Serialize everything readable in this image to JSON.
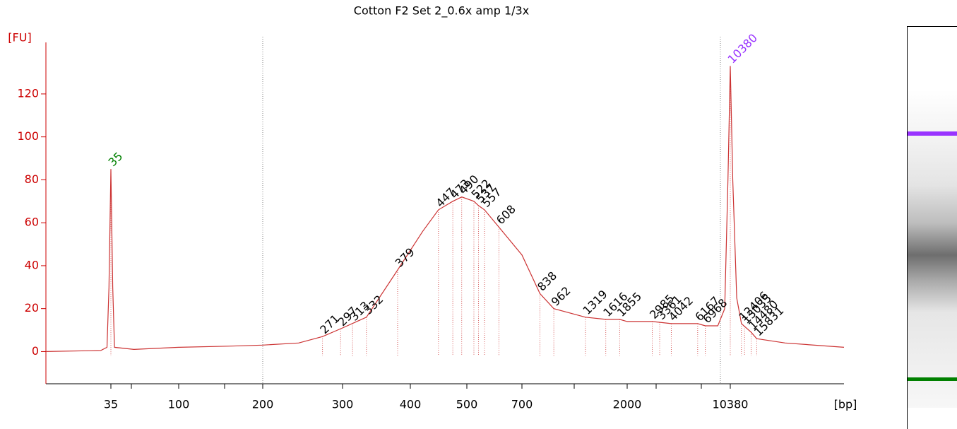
{
  "chart_data": {
    "type": "line",
    "title": "Cotton F2 Set 2_0.6x amp 1/3x",
    "y_label": "[FU]",
    "x_label": "[bp]",
    "xlim": [
      13,
      64000
    ],
    "xticks": [
      35,
      100,
      200,
      300,
      400,
      500,
      700,
      2000,
      10380
    ],
    "ylim": [
      -15,
      144
    ],
    "yticks": [
      0,
      20,
      40,
      60,
      80,
      100,
      120
    ],
    "x": [
      13,
      30,
      33,
      34,
      35,
      36,
      37,
      50,
      100,
      150,
      200,
      240,
      271,
      300,
      332,
      379,
      420,
      447,
      473,
      490,
      522,
      537,
      557,
      608,
      700,
      838,
      962,
      1319,
      1616,
      1855,
      2000,
      2985,
      4042,
      6167,
      6968,
      8500,
      9500,
      10000,
      10380,
      10800,
      11500,
      12406,
      14480,
      15831,
      25000,
      64000
    ],
    "series": [
      {
        "color": "#cc3333",
        "values": [
          0,
          0.5,
          2,
          30,
          85,
          30,
          2,
          1,
          2,
          2.5,
          3,
          4,
          7,
          11,
          16,
          38,
          56,
          66,
          70,
          72,
          70,
          68,
          66,
          58,
          45,
          27,
          20,
          16,
          15,
          15,
          14,
          14,
          13,
          13,
          12,
          12,
          20,
          80,
          133,
          80,
          25,
          13,
          9,
          6,
          4,
          2
        ]
      }
    ],
    "peaks": [
      35,
      271,
      297,
      313,
      332,
      379,
      447,
      473,
      490,
      522,
      537,
      557,
      608,
      838,
      962,
      1319,
      1616,
      1855,
      2985,
      3361,
      4042,
      6167,
      6968,
      10380,
      12406,
      13035,
      14480,
      15831
    ],
    "peak_color": "#000000",
    "marker_colors": [
      "#008000",
      "#9933ff"
    ],
    "axis_color": "#cc0000"
  }
}
